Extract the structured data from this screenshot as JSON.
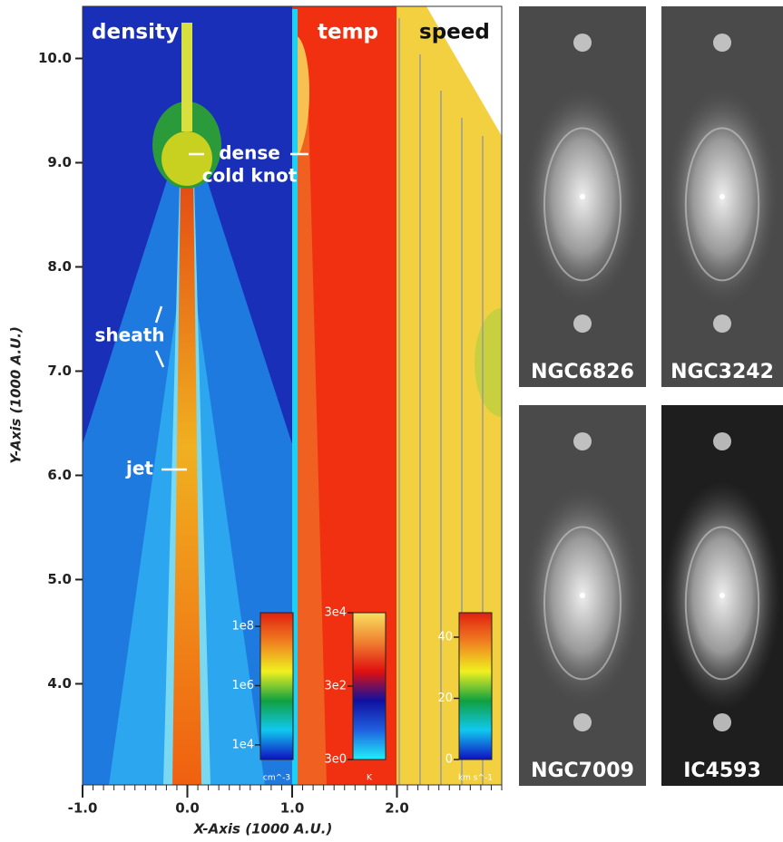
{
  "chart_data": {
    "type": "field",
    "x_label": "X-Axis (1000 A.U.)",
    "y_label": "Y-Axis (1000 A.U.)",
    "xlim": [
      -1.0,
      3.0
    ],
    "ylim": [
      3.03,
      10.5
    ],
    "xticks": [
      {
        "value": -1,
        "label": "-1.0"
      },
      {
        "value": 0,
        "label": "0.0"
      },
      {
        "value": 1,
        "label": "1.0"
      },
      {
        "value": 2,
        "label": "2.0"
      }
    ],
    "yticks": [
      {
        "value": 4,
        "label": "4.0"
      },
      {
        "value": 5,
        "label": "5.0"
      },
      {
        "value": 6,
        "label": "6.0"
      },
      {
        "value": 7,
        "label": "7.0"
      },
      {
        "value": 8,
        "label": "8.0"
      },
      {
        "value": 9,
        "label": "9.0"
      },
      {
        "value": 10,
        "label": "10.0"
      }
    ],
    "panels": [
      "density",
      "temp",
      "speed"
    ],
    "annotations": [
      "dense",
      "cold knot",
      "sheath",
      "jet"
    ],
    "colorbars": [
      {
        "unit": "cm^-3",
        "scale": "log",
        "lim": [
          3200,
          290000000
        ],
        "ticks": [
          {
            "value": 100000000,
            "label": "1e8"
          },
          {
            "value": 1000000,
            "label": "1e6"
          },
          {
            "value": 10000,
            "label": "1e4"
          }
        ],
        "colors": [
          "#1010c0",
          "#10c8f0",
          "#10a040",
          "#f0f020",
          "#f08020",
          "#e02010"
        ]
      },
      {
        "unit": "K",
        "scale": "log",
        "lim": [
          3,
          30000
        ],
        "ticks": [
          {
            "value": 30000,
            "label": "3e4"
          },
          {
            "value": 300,
            "label": "3e2"
          },
          {
            "value": 3,
            "label": "3e0"
          }
        ],
        "colors": [
          "#20f0f8",
          "#2060e0",
          "#1010a0",
          "#e01010",
          "#f08030",
          "#f8e060"
        ]
      },
      {
        "unit": "km s^-1",
        "scale": "linear",
        "lim": [
          0,
          48
        ],
        "ticks": [
          40,
          20,
          0
        ],
        "colors": [
          "#1010c0",
          "#10c8f0",
          "#10a040",
          "#f0f020",
          "#f08020",
          "#e02010"
        ]
      }
    ],
    "images": [
      "NGC6826",
      "NGC3242",
      "NGC7009",
      "IC4593"
    ]
  }
}
